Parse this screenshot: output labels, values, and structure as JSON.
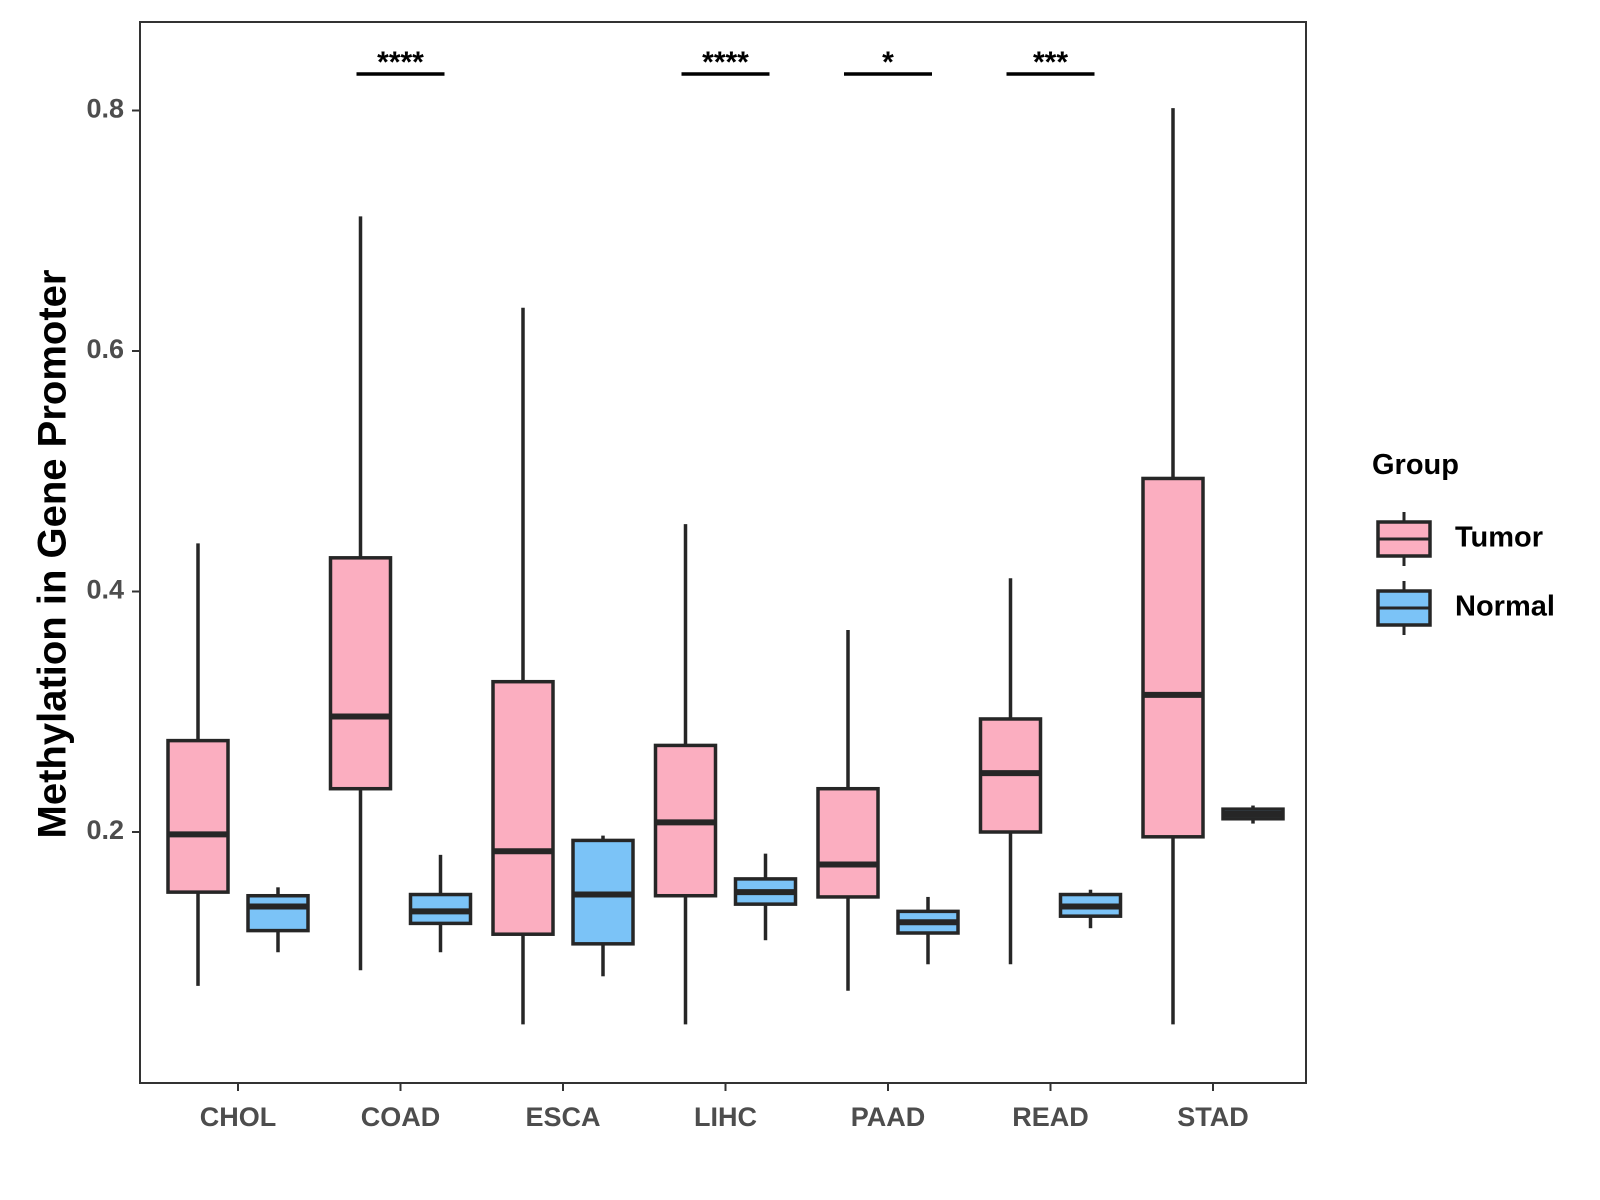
{
  "chart_data": {
    "type": "box",
    "title": "",
    "xlabel": "",
    "ylabel": "Methylation in Gene Promoter",
    "ylim": [
      0.02,
      0.9
    ],
    "yticks": [
      0.2,
      0.4,
      0.6,
      0.8
    ],
    "ytick_labels": [
      "0.2",
      "0.4",
      "0.6",
      "0.8"
    ],
    "categories": [
      "CHOL",
      "COAD",
      "ESCA",
      "LIHC",
      "PAAD",
      "READ",
      "STAD"
    ],
    "legend": {
      "title": "Group",
      "position": "right",
      "entries": [
        {
          "name": "Tumor",
          "color": "#fbaec0"
        },
        {
          "name": "Normal",
          "color": "#7bc3f7"
        }
      ]
    },
    "series": [
      {
        "name": "Tumor",
        "color": "#fbaec0",
        "boxes": [
          {
            "category": "CHOL",
            "min": 0.072,
            "q1": 0.15,
            "median": 0.198,
            "q3": 0.276,
            "max": 0.44
          },
          {
            "category": "COAD",
            "min": 0.085,
            "q1": 0.236,
            "median": 0.296,
            "q3": 0.428,
            "max": 0.712
          },
          {
            "category": "ESCA",
            "min": 0.04,
            "q1": 0.115,
            "median": 0.184,
            "q3": 0.325,
            "max": 0.636
          },
          {
            "category": "LIHC",
            "min": 0.04,
            "q1": 0.147,
            "median": 0.208,
            "q3": 0.272,
            "max": 0.456
          },
          {
            "category": "PAAD",
            "min": 0.068,
            "q1": 0.146,
            "median": 0.173,
            "q3": 0.236,
            "max": 0.368
          },
          {
            "category": "READ",
            "min": 0.09,
            "q1": 0.2,
            "median": 0.249,
            "q3": 0.294,
            "max": 0.411
          },
          {
            "category": "STAD",
            "min": 0.04,
            "q1": 0.196,
            "median": 0.314,
            "q3": 0.494,
            "max": 0.802
          }
        ]
      },
      {
        "name": "Normal",
        "color": "#7bc3f7",
        "boxes": [
          {
            "category": "CHOL",
            "min": 0.1,
            "q1": 0.118,
            "median": 0.138,
            "q3": 0.147,
            "max": 0.154
          },
          {
            "category": "COAD",
            "min": 0.1,
            "q1": 0.124,
            "median": 0.134,
            "q3": 0.148,
            "max": 0.181
          },
          {
            "category": "ESCA",
            "min": 0.08,
            "q1": 0.107,
            "median": 0.148,
            "q3": 0.193,
            "max": 0.197
          },
          {
            "category": "LIHC",
            "min": 0.11,
            "q1": 0.14,
            "median": 0.15,
            "q3": 0.161,
            "max": 0.182
          },
          {
            "category": "PAAD",
            "min": 0.09,
            "q1": 0.116,
            "median": 0.125,
            "q3": 0.134,
            "max": 0.146
          },
          {
            "category": "READ",
            "min": 0.12,
            "q1": 0.13,
            "median": 0.138,
            "q3": 0.148,
            "max": 0.152
          },
          {
            "category": "STAD",
            "min": 0.207,
            "q1": 0.211,
            "median": 0.215,
            "q3": 0.219,
            "max": 0.222
          }
        ]
      }
    ],
    "annotations": [
      {
        "category": "COAD",
        "label": "****"
      },
      {
        "category": "LIHC",
        "label": "****"
      },
      {
        "category": "PAAD",
        "label": "*"
      },
      {
        "category": "READ",
        "label": "***"
      }
    ],
    "grid": false
  }
}
